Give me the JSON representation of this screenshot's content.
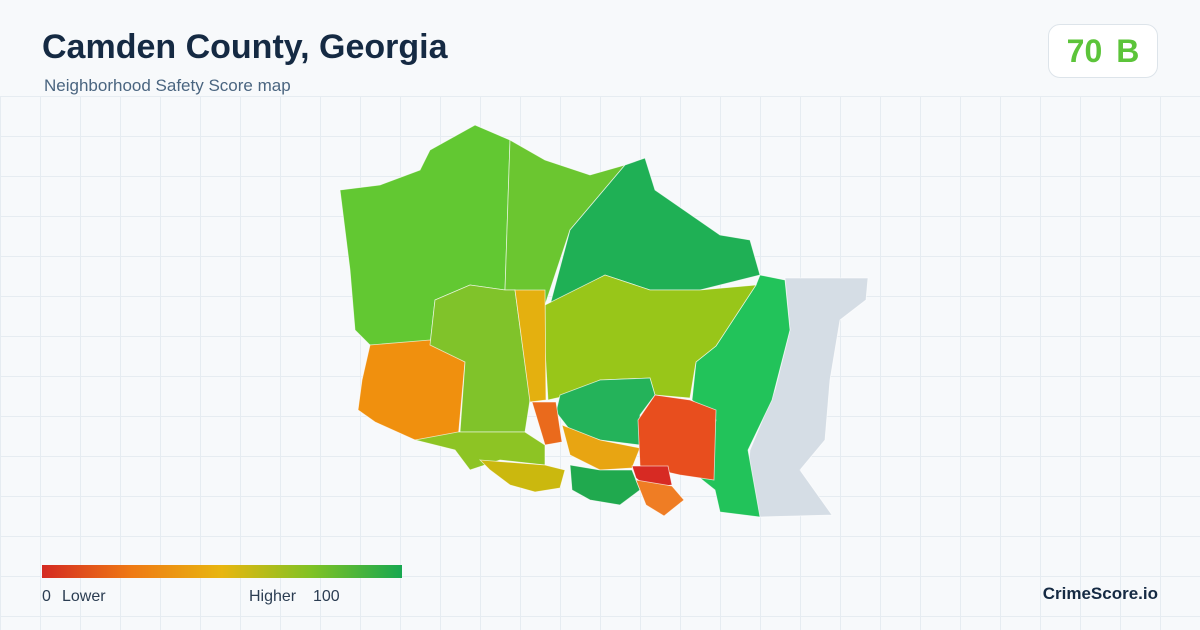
{
  "header": {
    "title": "Camden County, Georgia",
    "subtitle": "Neighborhood Safety Score map"
  },
  "score": {
    "value": 70,
    "grade": "B"
  },
  "legend": {
    "min": 0,
    "min_label": "Lower",
    "max_label": "Higher",
    "max": 100
  },
  "brand": "CrimeScore.io"
}
